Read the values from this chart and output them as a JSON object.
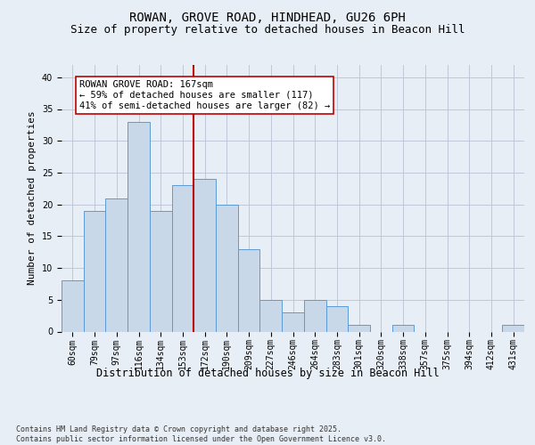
{
  "title1": "ROWAN, GROVE ROAD, HINDHEAD, GU26 6PH",
  "title2": "Size of property relative to detached houses in Beacon Hill",
  "xlabel": "Distribution of detached houses by size in Beacon Hill",
  "ylabel": "Number of detached properties",
  "categories": [
    "60sqm",
    "79sqm",
    "97sqm",
    "116sqm",
    "134sqm",
    "153sqm",
    "172sqm",
    "190sqm",
    "209sqm",
    "227sqm",
    "246sqm",
    "264sqm",
    "283sqm",
    "301sqm",
    "320sqm",
    "338sqm",
    "357sqm",
    "375sqm",
    "394sqm",
    "412sqm",
    "431sqm"
  ],
  "values": [
    8,
    19,
    21,
    33,
    19,
    23,
    24,
    20,
    13,
    5,
    3,
    5,
    4,
    1,
    0,
    1,
    0,
    0,
    0,
    0,
    1
  ],
  "bar_color": "#c8d8e8",
  "bar_edge_color": "#5b9bd5",
  "grid_color": "#c0c8d8",
  "background_color": "#e8eef5",
  "vline_x_index": 6,
  "vline_color": "#c00000",
  "annotation_text": "ROWAN GROVE ROAD: 167sqm\n← 59% of detached houses are smaller (117)\n41% of semi-detached houses are larger (82) →",
  "annotation_box_color": "#ffffff",
  "annotation_edge_color": "#c00000",
  "ylim": [
    0,
    42
  ],
  "yticks": [
    0,
    5,
    10,
    15,
    20,
    25,
    30,
    35,
    40
  ],
  "footnote": "Contains HM Land Registry data © Crown copyright and database right 2025.\nContains public sector information licensed under the Open Government Licence v3.0.",
  "title1_fontsize": 10,
  "title2_fontsize": 9,
  "xlabel_fontsize": 8.5,
  "ylabel_fontsize": 8,
  "tick_fontsize": 7,
  "annotation_fontsize": 7.5,
  "footnote_fontsize": 6
}
